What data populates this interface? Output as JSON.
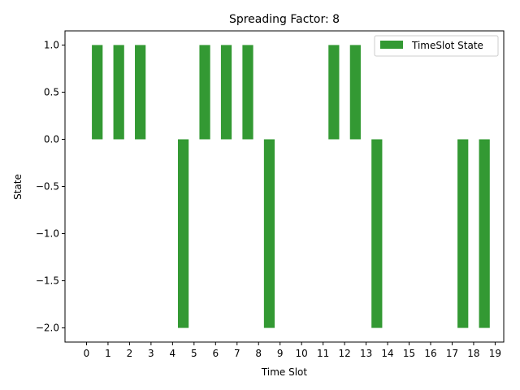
{
  "chart_data": {
    "type": "bar",
    "title": "Spreading Factor: 8",
    "xlabel": "Time Slot",
    "ylabel": "State",
    "x_ticks": [
      "0",
      "1",
      "2",
      "3",
      "4",
      "5",
      "6",
      "7",
      "8",
      "9",
      "10",
      "11",
      "12",
      "13",
      "14",
      "15",
      "16",
      "17",
      "18",
      "19"
    ],
    "y_ticks": [
      "−2.0",
      "−1.5",
      "−1.0",
      "−0.5",
      "0.0",
      "0.5",
      "1.0"
    ],
    "y_tick_values": [
      -2.0,
      -1.5,
      -1.0,
      -0.5,
      0.0,
      0.5,
      1.0
    ],
    "ylim": [
      -2.15,
      1.15
    ],
    "xlim": [
      -1.0,
      19.4
    ],
    "grid": false,
    "legend_position": "top-right",
    "series": [
      {
        "name": "TimeSlot State",
        "color": "#339933",
        "x": [
          0.5,
          1.5,
          2.5,
          3.5,
          4.5,
          5.5,
          6.5,
          7.5,
          8.5,
          9.5,
          10.5,
          11.5,
          12.5,
          13.5,
          14.5,
          15.5,
          16.5,
          17.5,
          18.5
        ],
        "values": [
          1,
          1,
          1,
          0,
          -2,
          1,
          1,
          1,
          -2,
          0,
          0,
          1,
          1,
          -2,
          0,
          0,
          0,
          -2,
          -2
        ]
      }
    ]
  }
}
